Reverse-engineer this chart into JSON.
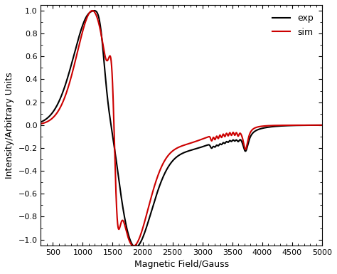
{
  "title": "",
  "xlabel": "Magnetic Field/Gauss",
  "ylabel": "Intensity/Arbitrary Units",
  "xlim": [
    300,
    5000
  ],
  "ylim": [
    -1.05,
    1.05
  ],
  "xticks": [
    500,
    1000,
    1500,
    2000,
    2500,
    3000,
    3500,
    4000,
    4500,
    5000
  ],
  "yticks": [
    -1,
    -0.8,
    -0.6,
    -0.4,
    -0.2,
    0,
    0.2,
    0.4,
    0.6,
    0.8,
    1
  ],
  "exp_color": "#000000",
  "sim_color": "#cc0000",
  "linewidth": 1.5,
  "legend_labels": [
    "exp",
    "sim"
  ],
  "background_color": "#ffffff"
}
